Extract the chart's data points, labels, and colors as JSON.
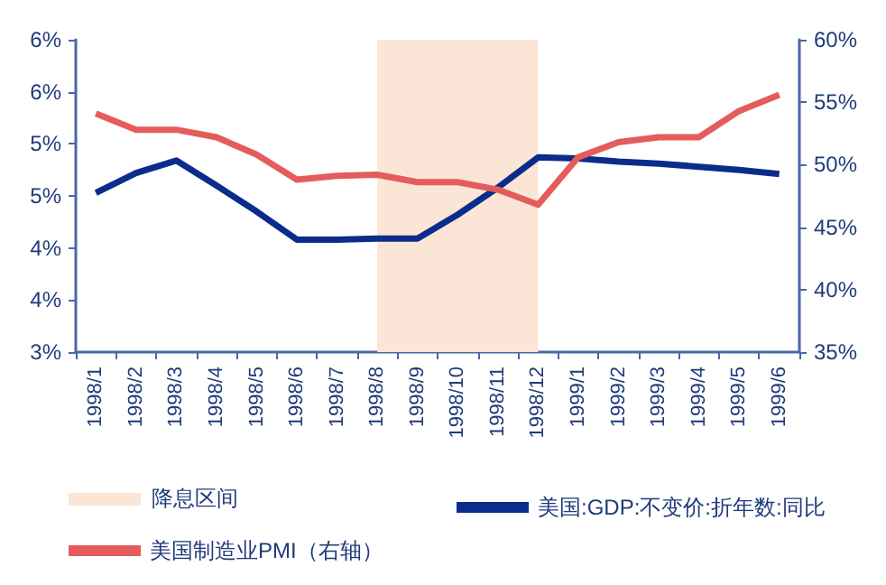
{
  "chart_data": {
    "type": "line",
    "categories": [
      "1998/1",
      "1998/2",
      "1998/3",
      "1998/4",
      "1998/5",
      "1998/6",
      "1998/7",
      "1998/8",
      "1998/9",
      "1998/10",
      "1998/11",
      "1998/12",
      "1999/1",
      "1999/2",
      "1999/3",
      "1999/4",
      "1999/5",
      "1999/6"
    ],
    "series": [
      {
        "name": "美国:GDP:不变价:折年数:同比",
        "color": "#0a2d8c",
        "values": [
          4.53,
          4.72,
          4.84,
          4.6,
          4.35,
          4.08,
          4.08,
          4.09,
          4.09,
          4.32,
          4.58,
          4.87,
          4.86,
          4.83,
          4.81,
          4.78,
          4.75,
          4.71
        ]
      },
      {
        "name": "美国制造业PMI（右轴）",
        "color": "#e45c5c",
        "axis": "y2",
        "values": [
          54.1,
          52.8,
          52.8,
          52.2,
          50.8,
          48.8,
          49.1,
          49.2,
          48.6,
          48.6,
          48.0,
          46.8,
          50.6,
          51.8,
          52.2,
          52.2,
          54.3,
          55.6
        ]
      }
    ],
    "ylim": [
      3,
      6
    ],
    "yticks": [
      {
        "value": 3,
        "label": "3%"
      },
      {
        "value": 3.5,
        "label": "4%"
      },
      {
        "value": 4,
        "label": "4%"
      },
      {
        "value": 4.5,
        "label": "5%"
      },
      {
        "value": 5,
        "label": "5%"
      },
      {
        "value": 5.5,
        "label": "6%"
      },
      {
        "value": 6,
        "label": "6%"
      }
    ],
    "y2lim": [
      35,
      60
    ],
    "y2ticks": [
      {
        "value": 35,
        "label": "35%"
      },
      {
        "value": 40,
        "label": "40%"
      },
      {
        "value": 45,
        "label": "45%"
      },
      {
        "value": 50,
        "label": "50%"
      },
      {
        "value": 55,
        "label": "55%"
      },
      {
        "value": 60,
        "label": "60%"
      }
    ],
    "bands": [
      {
        "axis": "x",
        "from": "1998/8",
        "to": "1998/12",
        "label": "降息区间",
        "color": "#fbe5d6"
      }
    ],
    "grid": false,
    "legend": "bottom",
    "marker": "none",
    "line_style": "solid"
  }
}
